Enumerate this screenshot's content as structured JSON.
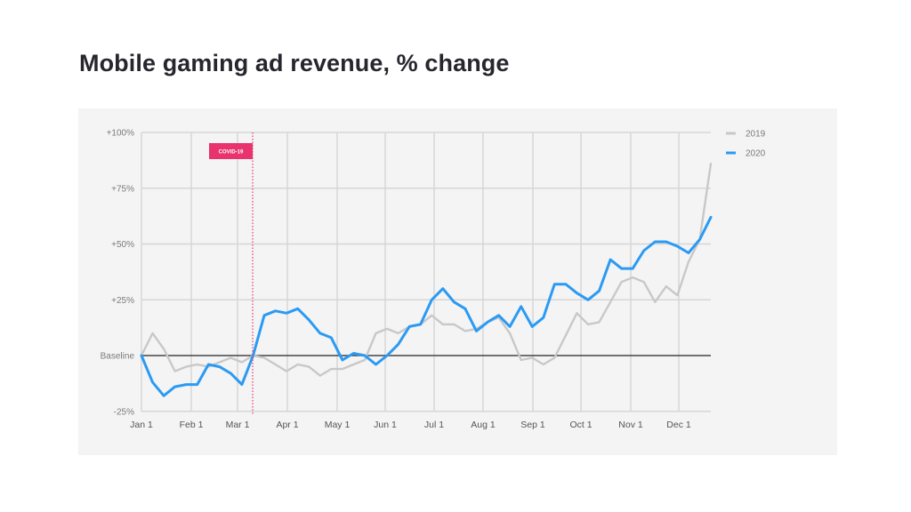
{
  "chart_data": {
    "type": "line",
    "title": "Mobile gaming ad revenue, % change",
    "xlabel": "",
    "ylabel": "",
    "ylim": [
      -25,
      100
    ],
    "y_ticks": [
      "+100%",
      "+75%",
      "+50%",
      "+25%",
      "Baseline",
      "-25%"
    ],
    "y_tick_values": [
      100,
      75,
      50,
      25,
      0,
      -25
    ],
    "x_tick_labels": [
      "Jan 1",
      "Feb 1",
      "Mar 1",
      "Apr 1",
      "May 1",
      "Jun 1",
      "Jul 1",
      "Aug 1",
      "Sep 1",
      "Oct 1",
      "Nov 1",
      "Dec 1"
    ],
    "x_unit": "week of year (1-52)",
    "grid": true,
    "legend_position": "top-right",
    "annotation": {
      "label": "COVID-19",
      "week": 11,
      "color": "#e8336f"
    },
    "series": [
      {
        "name": "2019",
        "color": "#c8c8c8",
        "values": [
          0,
          10,
          3,
          -7,
          -5,
          -4,
          -5,
          -3,
          -1,
          -3,
          0,
          -1,
          -4,
          -7,
          -4,
          -5,
          -9,
          -6,
          -6,
          -4,
          -2,
          10,
          12,
          10,
          13,
          14,
          18,
          14,
          14,
          11,
          12,
          15,
          17,
          10,
          -2,
          -1,
          -4,
          -1,
          9,
          19,
          14,
          15,
          24,
          33,
          35,
          33,
          24,
          31,
          27,
          42,
          52,
          86
        ]
      },
      {
        "name": "2020",
        "color": "#2b9af3",
        "values": [
          0,
          -12,
          -18,
          -14,
          -13,
          -13,
          -4,
          -5,
          -8,
          -13,
          0,
          18,
          20,
          19,
          21,
          16,
          10,
          8,
          -2,
          1,
          0,
          -4,
          0,
          5,
          13,
          14,
          25,
          30,
          24,
          21,
          11,
          15,
          18,
          13,
          22,
          13,
          17,
          32,
          32,
          28,
          25,
          29,
          43,
          39,
          39,
          47,
          51,
          51,
          49,
          46,
          52,
          62
        ]
      }
    ]
  },
  "legend": [
    {
      "label": "2019",
      "color": "#c8c8c8"
    },
    {
      "label": "2020",
      "color": "#2b9af3"
    }
  ]
}
